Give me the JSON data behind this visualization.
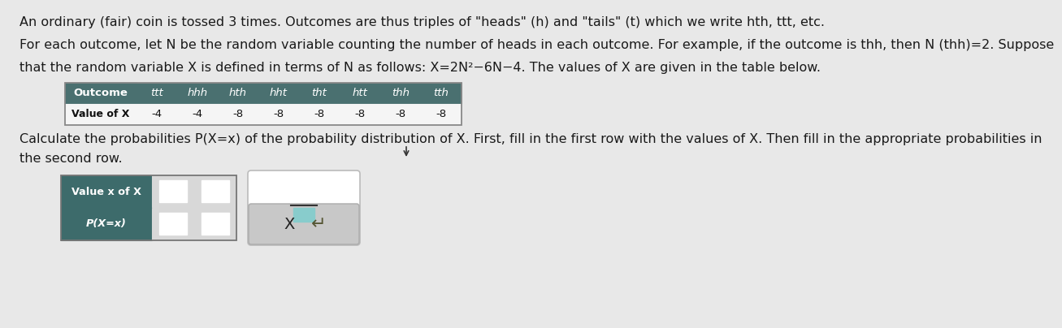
{
  "bg_color": "#e8e8e8",
  "text_color": "#1a1a1a",
  "line1": "An ordinary (fair) coin is tossed 3 times. Outcomes are thus triples of \"heads\" (h) and \"tails\" (t) which we write hth, ttt, etc.",
  "line2": "For each outcome, let N be the random variable counting the number of heads in each outcome. For example, if the outcome is thh, then N (thh)=2. Suppose",
  "line3": "that the random variable X is defined in terms of N as follows: X=2N²−6N−4. The values of X are given in the table below.",
  "line4": "Calculate the probabilities P(X=x) of the probability distribution of X. First, fill in the first row with the values of X. Then fill in the appropriate probabilities in",
  "line5": "the second row.",
  "t1_outcomes": [
    "ttt",
    "hhh",
    "hth",
    "hht",
    "tht",
    "htt",
    "thh",
    "tth"
  ],
  "t1_values": [
    "-4",
    "-4",
    "-8",
    "-8",
    "-8",
    "-8",
    "-8",
    "-8"
  ],
  "table1_hdr_bg": "#4a7070",
  "table1_hdr_fg": "#ffffff",
  "table1_row_bg": "#f5f5f5",
  "table1_row_fg": "#111111",
  "table2_hdr_bg": "#3d6b6b",
  "table2_hdr_fg": "#ffffff",
  "table2_cell_bg": "#d8d8d8",
  "input_box_bg": "#ffffff",
  "input_box_border": "#7788bb",
  "frac_box_bg": "#ffffff",
  "frac_box_border": "#bbbbbb",
  "frac_denom_bg": "#88cccc",
  "action_box_bg": "#c8c8c8",
  "action_box_border": "#aaaaaa"
}
